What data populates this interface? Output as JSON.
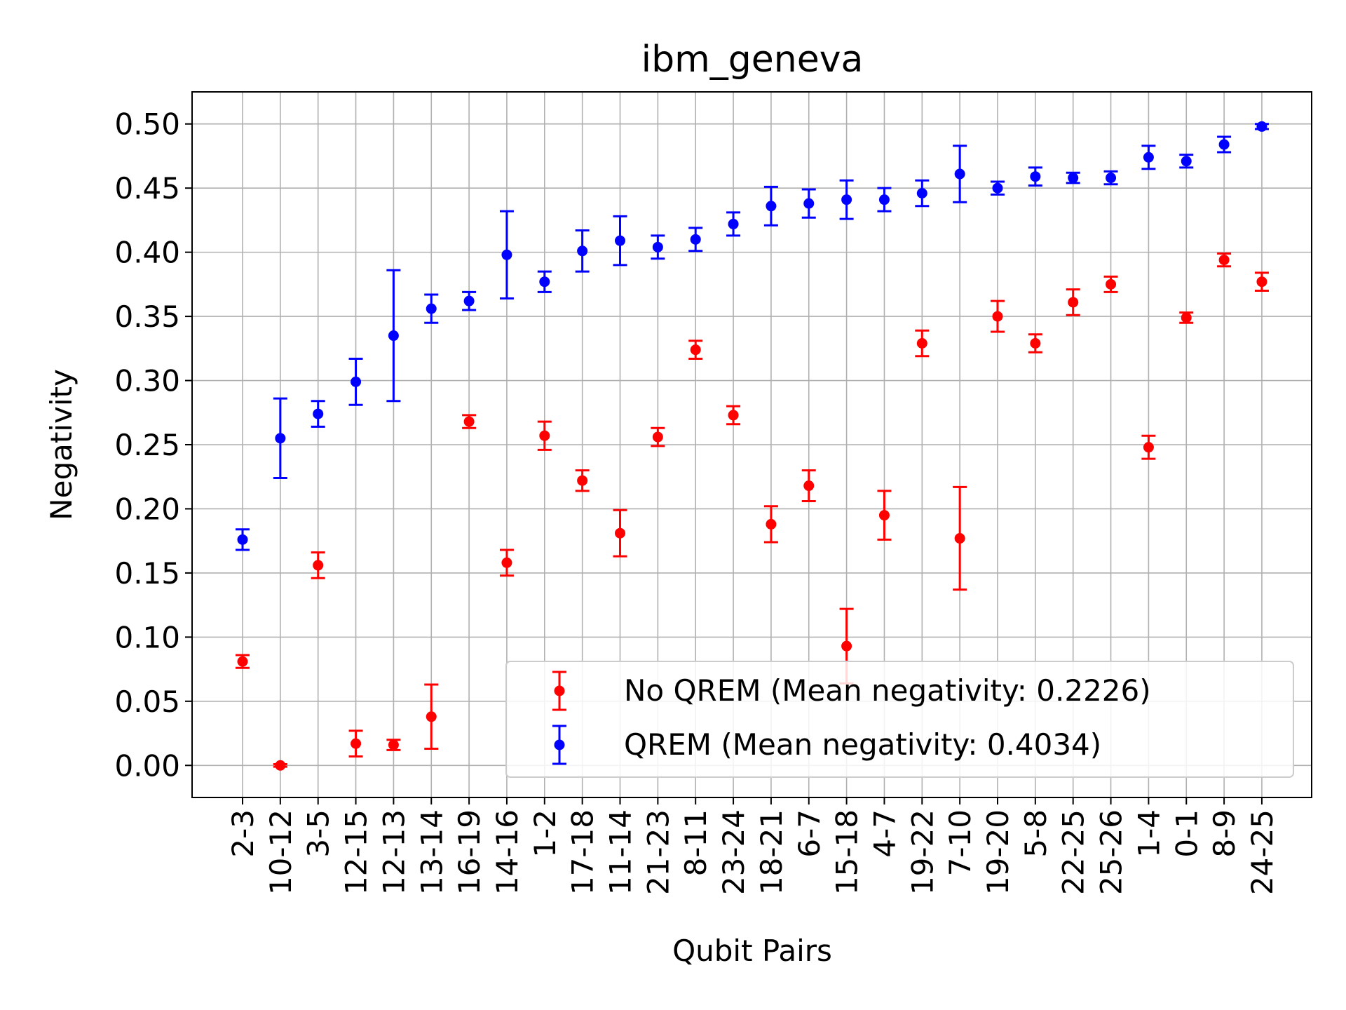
{
  "chart_data": {
    "type": "scatter",
    "title": "ibm_geneva",
    "xlabel": "Qubit Pairs",
    "ylabel": "Negativity",
    "ylim": [
      -0.025,
      0.525
    ],
    "yticks": [
      "0.00",
      "0.05",
      "0.10",
      "0.15",
      "0.20",
      "0.25",
      "0.30",
      "0.35",
      "0.40",
      "0.45",
      "0.50"
    ],
    "grid": true,
    "legend_position": "lower-right",
    "categories": [
      "2-3",
      "10-12",
      "3-5",
      "12-15",
      "12-13",
      "13-14",
      "16-19",
      "14-16",
      "1-2",
      "17-18",
      "11-14",
      "21-23",
      "8-11",
      "23-24",
      "18-21",
      "6-7",
      "15-18",
      "4-7",
      "19-22",
      "7-10",
      "19-20",
      "5-8",
      "22-25",
      "25-26",
      "1-4",
      "0-1",
      "8-9",
      "24-25"
    ],
    "series": [
      {
        "name": "No QREM (Mean negativity: 0.2226)",
        "color": "#ff0000",
        "values": [
          0.081,
          0.0,
          0.156,
          0.017,
          0.016,
          0.038,
          0.268,
          0.158,
          0.257,
          0.222,
          0.181,
          0.256,
          0.324,
          0.273,
          0.188,
          0.218,
          0.093,
          0.195,
          0.329,
          0.177,
          0.35,
          0.329,
          0.361,
          0.375,
          0.248,
          0.349,
          0.394,
          0.377
        ],
        "errors": [
          0.005,
          0.001,
          0.01,
          0.01,
          0.004,
          0.025,
          0.005,
          0.01,
          0.011,
          0.008,
          0.018,
          0.007,
          0.007,
          0.007,
          0.014,
          0.012,
          0.029,
          0.019,
          0.01,
          0.04,
          0.012,
          0.007,
          0.01,
          0.006,
          0.009,
          0.004,
          0.005,
          0.007
        ]
      },
      {
        "name": "QREM (Mean negativity: 0.4034)",
        "color": "#0000ff",
        "values": [
          0.176,
          0.255,
          0.274,
          0.299,
          0.335,
          0.356,
          0.362,
          0.398,
          0.377,
          0.401,
          0.409,
          0.404,
          0.41,
          0.422,
          0.436,
          0.438,
          0.441,
          0.441,
          0.446,
          0.461,
          0.45,
          0.459,
          0.458,
          0.458,
          0.474,
          0.471,
          0.484,
          0.498
        ],
        "errors": [
          0.008,
          0.031,
          0.01,
          0.018,
          0.051,
          0.011,
          0.007,
          0.034,
          0.008,
          0.016,
          0.019,
          0.009,
          0.009,
          0.009,
          0.015,
          0.011,
          0.015,
          0.009,
          0.01,
          0.022,
          0.005,
          0.007,
          0.004,
          0.005,
          0.009,
          0.005,
          0.006,
          0.002
        ]
      }
    ]
  }
}
